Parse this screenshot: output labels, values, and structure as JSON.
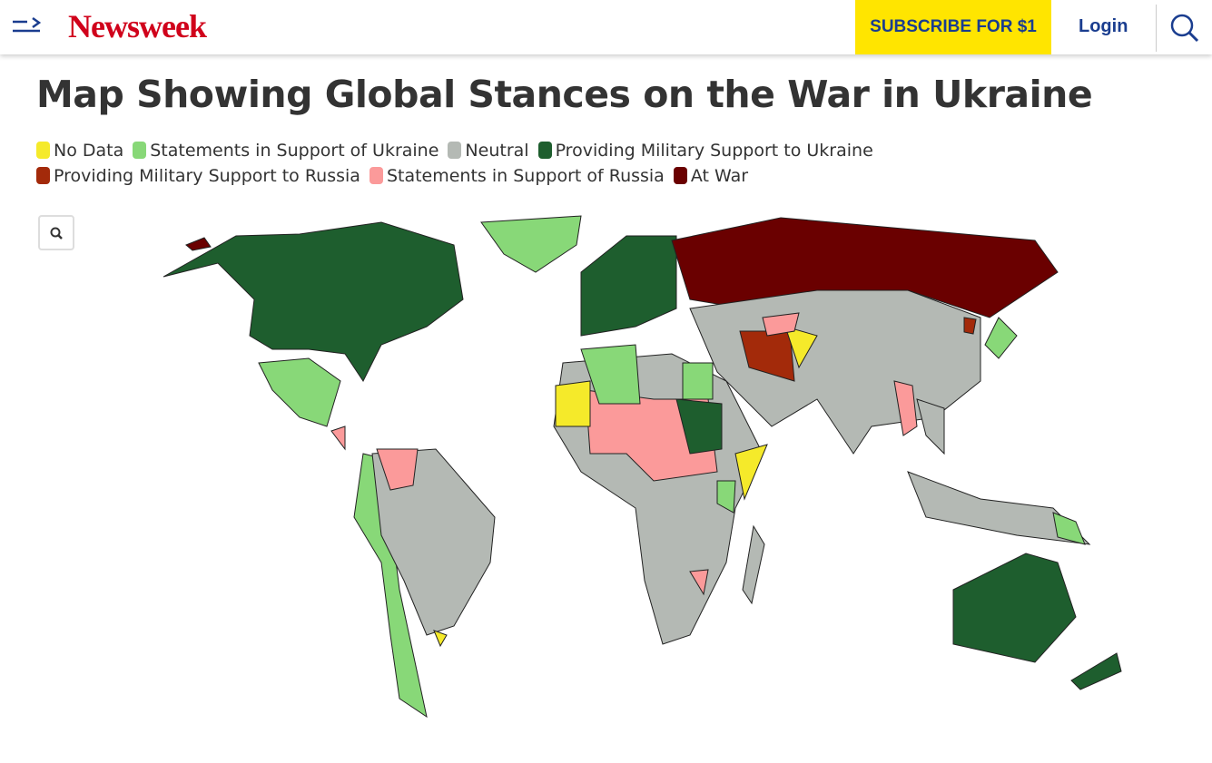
{
  "header": {
    "logo": "Newsweek",
    "subscribe": "SUBSCRIBE FOR $1",
    "login": "Login"
  },
  "title": "Map Showing Global Stances on the War in Ukraine",
  "legend": [
    {
      "name": "No Data",
      "color": "#f5ea2a"
    },
    {
      "name": "Statements in Support of Ukraine",
      "color": "#88d878"
    },
    {
      "name": "Neutral",
      "color": "#b4b9b4"
    },
    {
      "name": "Providing Military Support to Ukraine",
      "color": "#1e5e2e"
    },
    {
      "name": "Providing Military Support to Russia",
      "color": "#a32a0a"
    },
    {
      "name": "Statements in Support of Russia",
      "color": "#fb9a9a"
    },
    {
      "name": "At War",
      "color": "#6a0000"
    }
  ]
}
